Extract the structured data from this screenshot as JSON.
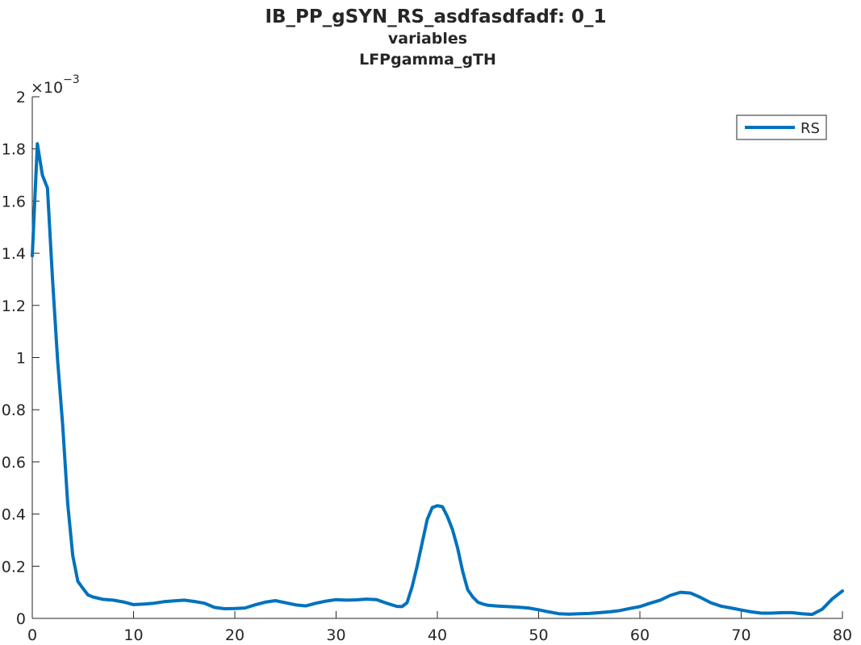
{
  "chart_data": {
    "type": "line",
    "title": "IB_PP_gSYN_RS_asdfasdfadf: 0_1",
    "subtitle_lines": [
      "variables",
      "LFPgamma_gTH"
    ],
    "xlabel": "",
    "ylabel": "",
    "xlim": [
      0,
      80
    ],
    "ylim": [
      0,
      0.002
    ],
    "y_exponent_label": "×10",
    "y_exponent_power": "−3",
    "x_ticks": [
      0,
      10,
      20,
      30,
      40,
      50,
      60,
      70,
      80
    ],
    "x_tick_labels": [
      "0",
      "10",
      "20",
      "30",
      "40",
      "50",
      "60",
      "70",
      "80"
    ],
    "y_ticks": [
      0,
      0.0002,
      0.0004,
      0.0006,
      0.0008,
      0.001,
      0.0012,
      0.0014,
      0.0016,
      0.0018,
      0.002
    ],
    "y_tick_labels": [
      "0",
      "0.2",
      "0.4",
      "0.6",
      "0.8",
      "1",
      "1.2",
      "1.4",
      "1.6",
      "1.8",
      "2"
    ],
    "grid": false,
    "legend_position": "top-right",
    "series": [
      {
        "name": "RS",
        "color": "#0072BD",
        "x": [
          0,
          0.5,
          1,
          1.5,
          2,
          2.5,
          3,
          3.5,
          4,
          4.5,
          5,
          5.5,
          6,
          7,
          8,
          9,
          10,
          11,
          12,
          13,
          14,
          15,
          16,
          17,
          18,
          19,
          20,
          21,
          22,
          23,
          24,
          25,
          26,
          27,
          28,
          29,
          30,
          31,
          32,
          33,
          34,
          35,
          36,
          36.5,
          37,
          37.5,
          38,
          38.5,
          39,
          39.5,
          40,
          40.5,
          41,
          41.5,
          42,
          42.5,
          43,
          43.5,
          44,
          44.5,
          45,
          46,
          47,
          48,
          49,
          50,
          51,
          52,
          53,
          54,
          55,
          56,
          57,
          58,
          59,
          60,
          61,
          62,
          63,
          64,
          65,
          66,
          67,
          68,
          69,
          70,
          71,
          72,
          73,
          74,
          75,
          76,
          77,
          78,
          79,
          80
        ],
        "y": [
          0.00139,
          0.00182,
          0.0017,
          0.00165,
          0.0013,
          0.00099,
          0.00074,
          0.00044,
          0.00024,
          0.000142,
          0.000115,
          9e-05,
          8.2e-05,
          7.3e-05,
          7e-05,
          6.3e-05,
          5.3e-05,
          5.5e-05,
          5.8e-05,
          6.4e-05,
          6.7e-05,
          7e-05,
          6.5e-05,
          5.8e-05,
          4.2e-05,
          3.7e-05,
          3.8e-05,
          4e-05,
          5.2e-05,
          6.2e-05,
          6.8e-05,
          6e-05,
          5.2e-05,
          4.8e-05,
          5.8e-05,
          6.6e-05,
          7.2e-05,
          7e-05,
          7.1e-05,
          7.4e-05,
          7.2e-05,
          5.8e-05,
          4.6e-05,
          4.5e-05,
          6e-05,
          0.00012,
          0.0002,
          0.00029,
          0.00038,
          0.000425,
          0.000432,
          0.000428,
          0.00039,
          0.00034,
          0.00027,
          0.00018,
          0.00011,
          8.2e-05,
          6.2e-05,
          5.5e-05,
          5e-05,
          4.7e-05,
          4.5e-05,
          4.3e-05,
          4e-05,
          3.3e-05,
          2.5e-05,
          1.8e-05,
          1.6e-05,
          1.8e-05,
          1.9e-05,
          2.2e-05,
          2.5e-05,
          3e-05,
          3.8e-05,
          4.5e-05,
          5.8e-05,
          7e-05,
          8.8e-05,
          0.0001,
          9.7e-05,
          8e-05,
          6e-05,
          4.7e-05,
          4e-05,
          3.2e-05,
          2.5e-05,
          2e-05,
          2e-05,
          2.2e-05,
          2.2e-05,
          1.8e-05,
          1.5e-05,
          3.5e-05,
          7.5e-05,
          0.000105
        ]
      }
    ]
  }
}
